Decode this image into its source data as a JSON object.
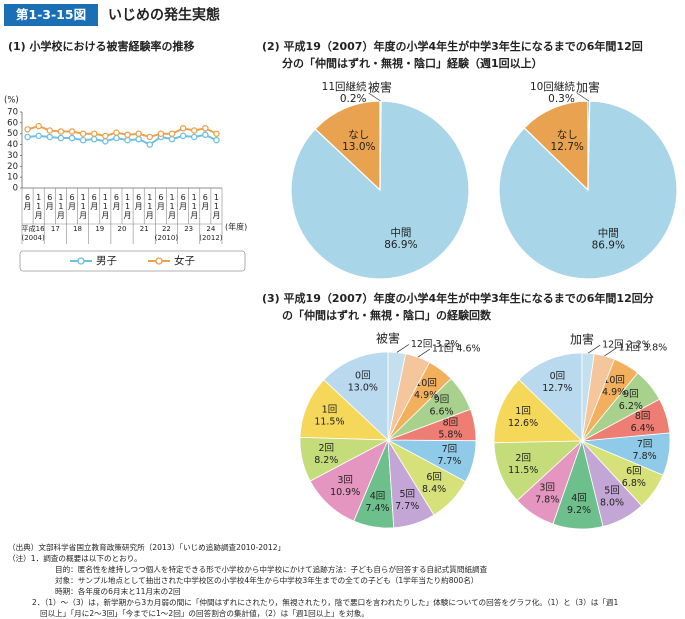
{
  "header": {
    "badge": "第1-3-15図",
    "title": "いじめの発生実態"
  },
  "chart_data": [
    {
      "type": "line",
      "title": "(1) 小学校における被害経験率の推移",
      "y_unit": "(%)",
      "x_unit": "(年度)",
      "categories": [
        "6月",
        "11月",
        "6月",
        "11月",
        "6月",
        "11月",
        "6月",
        "11月",
        "6月",
        "11月",
        "6月",
        "11月",
        "6月",
        "11月",
        "6月",
        "11月",
        "6月",
        "11月"
      ],
      "groups": [
        {
          "label": "平成16",
          "year": "(2004)"
        },
        {
          "label": "17"
        },
        {
          "label": "18"
        },
        {
          "label": "19"
        },
        {
          "label": "20"
        },
        {
          "label": "21"
        },
        {
          "label": "22",
          "year": "(2010)"
        },
        {
          "label": "23"
        },
        {
          "label": "24",
          "year": "(2012)"
        }
      ],
      "series": [
        {
          "name": "男子",
          "color": "#6fbfe0",
          "values": [
            47,
            48,
            47,
            46,
            46,
            44,
            45,
            43,
            46,
            44,
            45,
            40,
            47,
            45,
            48,
            47,
            49,
            44
          ]
        },
        {
          "name": "女子",
          "color": "#e9a24f",
          "values": [
            54,
            57,
            53,
            52,
            52,
            50,
            50,
            48,
            51,
            49,
            50,
            47,
            50,
            50,
            55,
            53,
            55,
            50
          ]
        }
      ],
      "ylim": [
        0,
        70
      ],
      "yticks": [
        0,
        10,
        20,
        30,
        40,
        50,
        60,
        70
      ],
      "grid": false
    },
    {
      "type": "pie",
      "direction": "counterclockwise",
      "title": [
        "(2) 平成19（2007）年度の小学4年生が中学3年生になるまでの6年間12回",
        "分の「仲間はずれ・無視・陰口」経験（週1回以上）"
      ],
      "series": [
        {
          "name": "被害",
          "categories": [
            "なし",
            "中間",
            "11回継続"
          ],
          "colors": [
            "#e9a24f",
            "#a8d6e8",
            "#2f8cc4"
          ],
          "values": [
            13.0,
            86.9,
            0.2
          ],
          "value_labels": [
            "13.0%",
            "86.9%",
            "0.2%"
          ]
        },
        {
          "name": "加害",
          "categories": [
            "なし",
            "中間",
            "10回継続"
          ],
          "colors": [
            "#e9a24f",
            "#a8d6e8",
            "#2f8cc4"
          ],
          "values": [
            12.7,
            86.9,
            0.3
          ],
          "value_labels": [
            "12.7%",
            "86.9%",
            "0.3%"
          ]
        }
      ]
    },
    {
      "type": "pie",
      "direction": "counterclockwise",
      "title": [
        "(3) 平成19（2007）年度の小学4年生が中学3年生になるまでの6年間12回分",
        "の「仲間はずれ・無視・陰口」の経験回数"
      ],
      "categories": [
        "0回",
        "1回",
        "2回",
        "3回",
        "4回",
        "5回",
        "6回",
        "7回",
        "8回",
        "9回",
        "10回",
        "11回",
        "12回"
      ],
      "colors": [
        "#b9d9ee",
        "#f5d75a",
        "#c5dc7a",
        "#e596c0",
        "#6dbf8c",
        "#c3a6d6",
        "#d6e17a",
        "#8fcbe8",
        "#ee7e73",
        "#a9d18e",
        "#f3b05c",
        "#f5c59b",
        "#c4e0ee"
      ],
      "series": [
        {
          "name": "被害",
          "values": [
            13.0,
            11.5,
            8.2,
            10.9,
            7.4,
            7.7,
            8.4,
            7.7,
            5.8,
            6.6,
            4.9,
            4.6,
            3.2
          ],
          "value_labels": [
            "13.0%",
            "11.5%",
            "8.2%",
            "10.9%",
            "7.4%",
            "7.7%",
            "8.4%",
            "7.7%",
            "5.8%",
            "6.6%",
            "4.9%",
            "4.6%",
            "3.2%"
          ]
        },
        {
          "name": "加害",
          "values": [
            12.7,
            12.6,
            11.5,
            7.8,
            9.2,
            8.0,
            6.8,
            7.8,
            6.4,
            6.2,
            4.9,
            3.8,
            2.2
          ],
          "value_labels": [
            "12.7%",
            "12.6%",
            "11.5%",
            "7.8%",
            "9.2%",
            "8.0%",
            "6.8%",
            "7.8%",
            "6.4%",
            "6.2%",
            "4.9%",
            "3.8%",
            "2.2%"
          ]
        }
      ]
    }
  ],
  "notes": [
    "（出典）文部科学省国立教育政策研究所（2013）「いじめ追跡調査2010-2012」",
    "（注）1．調査の概要は以下のとおり。",
    "目的：匿名性を維持しつつ個人を特定できる形で小学校から中学校にかけて追跡方法：子ども自らが回答する自記式質問紙調査",
    "対象：サンプル地点として抽出された中学校区の小学校4年生から中学校3年生までの全ての子ども（1学年当たり約800名）",
    "時期：各年度の6月末と11月末の2回",
    "2．（1）～（3）は，新学期から3カ月弱の間に「仲間はずれにされたり，無視されたり，陰で悪口を言われたりした」体験についての回答をグラフ化。（1）と（3）は「週1",
    "回以上」「月に2～3回」「今までに1～2回」の回答割合の集計値，（2）は「週1回以上」を対象。"
  ]
}
